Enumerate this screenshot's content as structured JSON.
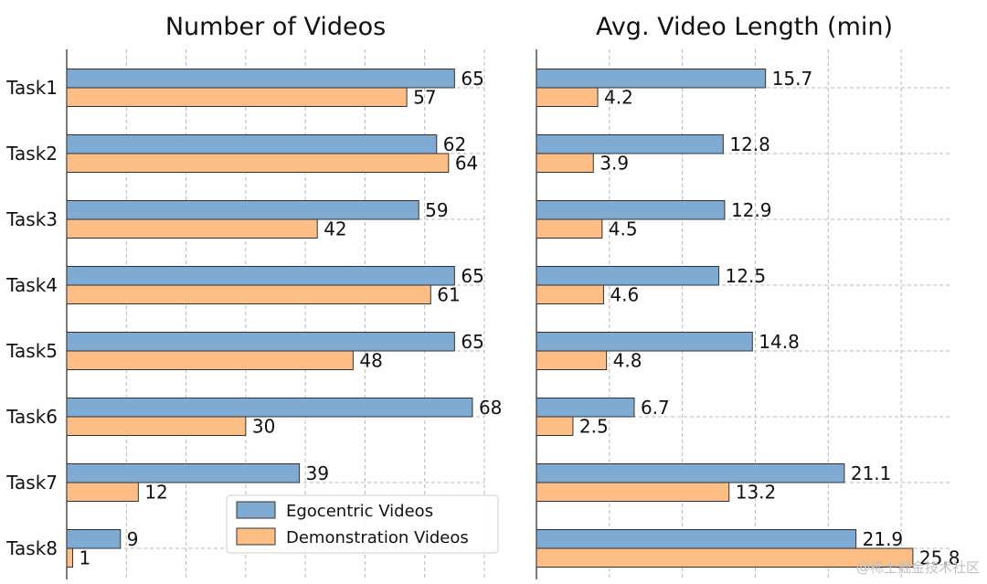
{
  "colors": {
    "egocentric": "#7fabd2",
    "demonstration": "#fdbe85",
    "bar_edge": "#333333"
  },
  "watermark": "@稀土掘金技术社区",
  "chart_data": [
    {
      "type": "bar",
      "orientation": "horizontal",
      "title": "Number of Videos",
      "categories": [
        "Task1",
        "Task2",
        "Task3",
        "Task4",
        "Task5",
        "Task6",
        "Task7",
        "Task8"
      ],
      "xlim": [
        0,
        70
      ],
      "grid": true,
      "legend_location": "lower-right",
      "legend": [
        "Egocentric Videos",
        "Demonstration Videos"
      ],
      "series": [
        {
          "name": "Egocentric Videos",
          "values": [
            65,
            62,
            59,
            65,
            65,
            68,
            39,
            9
          ]
        },
        {
          "name": "Demonstration Videos",
          "values": [
            57,
            64,
            42,
            61,
            48,
            30,
            12,
            1
          ]
        }
      ]
    },
    {
      "type": "bar",
      "orientation": "horizontal",
      "title": "Avg. Video Length (min)",
      "categories": [
        "Task1",
        "Task2",
        "Task3",
        "Task4",
        "Task5",
        "Task6",
        "Task7",
        "Task8"
      ],
      "xlim": [
        0,
        28.5
      ],
      "grid": true,
      "series": [
        {
          "name": "Egocentric Videos",
          "values": [
            15.7,
            12.8,
            12.9,
            12.5,
            14.8,
            6.7,
            21.1,
            21.9
          ]
        },
        {
          "name": "Demonstration Videos",
          "values": [
            4.2,
            3.9,
            4.5,
            4.6,
            4.8,
            2.5,
            13.2,
            25.8
          ]
        }
      ]
    }
  ]
}
